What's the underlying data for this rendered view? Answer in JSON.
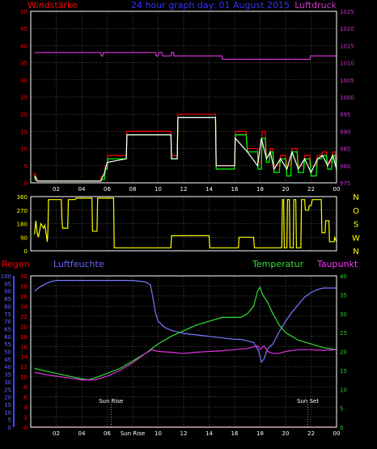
{
  "header": {
    "left_label": "Windstärke",
    "center_title": "24 hour graph day: 01 August 2015",
    "right_label": "Luftdruck"
  },
  "bottom_header": {
    "regen": "Regen",
    "luftfeuchte": "Luftfeuchte",
    "temperatur": "Temperatur",
    "taupunkt": "Taupunkt"
  },
  "colors": {
    "background": "#000000",
    "grid": "#8a8a8a",
    "axis_text": "#ffffff",
    "wind": "#ff0000",
    "gust": "#00ff00",
    "windspeed_avg": "#ffffff",
    "pressure": "#cc33cc",
    "direction": "#ffff00",
    "rain": "#ff0000",
    "humidity": "#7777ff",
    "temperature": "#33dd33",
    "dewpoint": "#dd33dd",
    "rain_axis": "#4444ff",
    "temp_axis": "#33cc33"
  },
  "chart_data": [
    {
      "type": "line",
      "panel": "wind-pressure",
      "x_ticks": [
        "02",
        "04",
        "06",
        "08",
        "10",
        "12",
        "14",
        "16",
        "18",
        "20",
        "22",
        "00"
      ],
      "y_left_ticks": [
        "0",
        "5",
        "10",
        "15",
        "20",
        "25",
        "30",
        "35",
        "40",
        "45",
        "50"
      ],
      "y_left_range": [
        0,
        50
      ],
      "y_right_ticks": [
        "975",
        "980",
        "985",
        "990",
        "995",
        "1000",
        "1005",
        "1010",
        "1015",
        "1020",
        "1025"
      ],
      "y_right_range": [
        975,
        1025
      ],
      "grid": true,
      "series": [
        {
          "key": "wind",
          "x": [
            0.3,
            0.35,
            0.4,
            0.5,
            0.6,
            0.7,
            5.5,
            5.55,
            5.8,
            5.85,
            6.0,
            6.05,
            7.5,
            7.55,
            10.5,
            10.55,
            11.0,
            11.05,
            11.5,
            11.55,
            14.5,
            14.55,
            16.0,
            16.05,
            16.9,
            17.0,
            17.8,
            17.85,
            18.1,
            18.15,
            18.4,
            18.5,
            18.7,
            18.8,
            19.0,
            19.1,
            19.5,
            19.6,
            20.0,
            20.1,
            20.4,
            20.5,
            20.9,
            21.0,
            21.4,
            21.5,
            21.9,
            22.0,
            22.4,
            22.5,
            22.8,
            22.9,
            23.2,
            23.3,
            23.6,
            23.7,
            23.9,
            24.0
          ],
          "y": [
            3,
            1,
            2,
            1,
            0.5,
            0.5,
            0.5,
            2,
            2,
            5,
            5,
            8,
            8,
            15,
            15,
            15,
            15,
            8,
            8,
            20,
            20,
            5,
            5,
            15,
            15,
            10,
            10,
            6,
            6,
            15,
            15,
            8,
            8,
            10,
            10,
            5,
            5,
            8,
            8,
            5,
            5,
            10,
            10,
            5,
            5,
            8,
            8,
            5,
            5,
            8,
            8,
            9,
            9,
            6,
            6,
            9,
            9,
            5
          ]
        },
        {
          "key": "gust",
          "x": [
            0.3,
            0.35,
            0.4,
            0.5,
            0.6,
            0.7,
            5.5,
            5.55,
            5.8,
            5.85,
            6.0,
            6.05,
            7.5,
            7.55,
            10.5,
            10.55,
            11.0,
            11.05,
            11.5,
            11.55,
            14.5,
            14.55,
            16.0,
            16.05,
            16.9,
            17.0,
            17.8,
            17.85,
            18.1,
            18.15,
            18.4,
            18.5,
            18.7,
            18.8,
            19.0,
            19.1,
            19.5,
            19.6,
            20.0,
            20.1,
            20.4,
            20.5,
            20.9,
            21.0,
            21.4,
            21.5,
            21.9,
            22.0,
            22.4,
            22.5,
            22.8,
            22.9,
            23.2,
            23.3,
            23.6,
            23.7,
            23.9,
            24.0
          ],
          "y": [
            2,
            1,
            1.5,
            0.5,
            0.5,
            0.5,
            0.5,
            1,
            1,
            4,
            4,
            7,
            7,
            14,
            14,
            14,
            14,
            7,
            7,
            19,
            19,
            4,
            4,
            14,
            14,
            9,
            9,
            4,
            4,
            13,
            13,
            6,
            6,
            9,
            9,
            3,
            3,
            7,
            7,
            2,
            2,
            9,
            9,
            3,
            3,
            7,
            7,
            2,
            2,
            7,
            7,
            8,
            8,
            4,
            4,
            8,
            8,
            3
          ]
        },
        {
          "key": "windspeed_avg",
          "x": [
            0.3,
            0.5,
            5.5,
            5.8,
            6.0,
            7.5,
            7.55,
            10.5,
            11.0,
            11.05,
            11.5,
            11.55,
            14.5,
            14.55,
            16.0,
            16.05,
            17.0,
            17.8,
            18.1,
            18.5,
            18.8,
            19.1,
            19.6,
            20.1,
            20.5,
            21.0,
            21.5,
            22.0,
            22.5,
            22.9,
            23.3,
            23.7,
            24.0
          ],
          "y": [
            2,
            0.5,
            0.5,
            3,
            6,
            7,
            14,
            14,
            14,
            7,
            7,
            19,
            19,
            5,
            5,
            13,
            9,
            5,
            13,
            7,
            9,
            4,
            7,
            4,
            9,
            4,
            7,
            3,
            7,
            8,
            5,
            8,
            4
          ]
        },
        {
          "key": "pressure",
          "x": [
            0.3,
            5.5,
            5.55,
            5.65,
            5.7,
            9.8,
            9.85,
            10.0,
            10.05,
            10.3,
            10.35,
            11.0,
            11.05,
            11.2,
            11.25,
            15.0,
            15.05,
            21.9,
            21.95,
            24.0
          ],
          "y": [
            1013,
            1013,
            1012,
            1012,
            1013,
            1013,
            1012,
            1012,
            1013,
            1013,
            1012,
            1012,
            1013,
            1013,
            1012,
            1012,
            1011,
            1011,
            1012,
            1012
          ]
        }
      ]
    },
    {
      "type": "line",
      "panel": "wind-direction",
      "y_left_ticks": [
        "0",
        "90",
        "180",
        "270",
        "360"
      ],
      "y_left_range": [
        0,
        360
      ],
      "compass_labels": [
        "N",
        "W",
        "S",
        "O",
        "N"
      ],
      "grid": true,
      "series": [
        {
          "key": "direction",
          "x": [
            0.3,
            0.4,
            0.5,
            0.6,
            0.8,
            1.0,
            1.1,
            1.2,
            1.3,
            1.35,
            1.4,
            2.4,
            2.45,
            2.5,
            2.9,
            2.95,
            3.5,
            3.55,
            3.6,
            4.8,
            4.85,
            5.2,
            5.25,
            6.5,
            6.55,
            11.0,
            11.05,
            14.0,
            14.05,
            15.3,
            15.35,
            16.3,
            16.35,
            17.5,
            17.55,
            18.5,
            18.55,
            19.7,
            19.75,
            19.85,
            19.9,
            20.1,
            20.15,
            20.3,
            20.35,
            20.6,
            20.65,
            20.8,
            20.85,
            21.2,
            21.25,
            21.5,
            21.55,
            21.8,
            21.85,
            22.0,
            22.1,
            22.8,
            22.85,
            23.1,
            23.15,
            23.4,
            23.45,
            23.8,
            23.85,
            24.0
          ],
          "y": [
            110,
            200,
            120,
            90,
            180,
            150,
            170,
            120,
            60,
            150,
            340,
            340,
            200,
            150,
            150,
            340,
            340,
            350,
            350,
            350,
            130,
            130,
            350,
            350,
            20,
            20,
            100,
            100,
            20,
            20,
            20,
            20,
            90,
            90,
            20,
            20,
            20,
            20,
            340,
            340,
            20,
            20,
            340,
            340,
            20,
            20,
            340,
            340,
            20,
            20,
            340,
            340,
            270,
            270,
            300,
            300,
            340,
            340,
            120,
            120,
            200,
            200,
            60,
            60,
            90,
            60
          ]
        }
      ]
    },
    {
      "type": "line",
      "panel": "climate",
      "x_ticks": [
        "02",
        "04",
        "06",
        "Sun Rise",
        "10",
        "12",
        "14",
        "16",
        "18",
        "20",
        "22",
        "00"
      ],
      "y_left_outer_ticks": [
        "0",
        "5",
        "10",
        "15",
        "20",
        "25",
        "30",
        "35",
        "40",
        "45",
        "50",
        "55",
        "60",
        "65",
        "70",
        "75",
        "80",
        "85",
        "90",
        "95",
        "100"
      ],
      "y_left_outer_range": [
        0,
        100
      ],
      "y_left_inner_ticks": [
        "0",
        "2",
        "4",
        "6",
        "8",
        "10",
        "12",
        "14",
        "16",
        "18",
        "20",
        "22",
        "24",
        "26",
        "28",
        "30"
      ],
      "y_left_inner_range": [
        0,
        30
      ],
      "y_right_ticks": [
        "0",
        "5",
        "10",
        "15",
        "20",
        "25",
        "30",
        "35",
        "40"
      ],
      "y_right_range": [
        0,
        40
      ],
      "annotations": [
        {
          "text": "Sun Rise",
          "x": 6.3
        },
        {
          "text": "Sun Set",
          "x": 21.75
        }
      ],
      "grid": true,
      "series": [
        {
          "key": "rain",
          "x": [
            0,
            24
          ],
          "y": [
            0,
            0
          ]
        },
        {
          "key": "humidity",
          "x": [
            0.3,
            0.6,
            1.0,
            1.5,
            2.0,
            3.0,
            4.0,
            5.0,
            6.0,
            7.0,
            8.0,
            9.0,
            9.4,
            9.6,
            9.8,
            10.0,
            10.5,
            11.0,
            11.5,
            12.0,
            13.0,
            14.0,
            15.0,
            16.0,
            16.5,
            17.0,
            17.5,
            17.9,
            18.1,
            18.3,
            18.6,
            19.0,
            19.5,
            20.0,
            20.5,
            21.0,
            21.5,
            22.0,
            22.5,
            23.0,
            23.5,
            24.0
          ],
          "y": [
            90,
            92,
            94,
            96,
            97,
            97,
            97,
            97,
            97,
            97,
            97,
            96,
            94,
            85,
            75,
            70,
            66,
            64,
            63,
            62,
            61,
            60,
            59,
            58,
            58,
            57,
            56,
            50,
            43,
            45,
            52,
            55,
            63,
            70,
            76,
            81,
            86,
            89,
            91,
            92,
            92,
            92
          ]
        },
        {
          "key": "temperature",
          "x": [
            0.3,
            1.0,
            2.0,
            3.0,
            4.0,
            4.5,
            5.0,
            6.0,
            7.0,
            8.0,
            9.0,
            10.0,
            11.0,
            12.0,
            13.0,
            14.0,
            15.0,
            16.0,
            16.5,
            17.0,
            17.5,
            17.8,
            18.0,
            18.2,
            18.4,
            18.6,
            19.0,
            19.5,
            20.0,
            21.0,
            22.0,
            23.0,
            24.0
          ],
          "y": [
            15.5,
            15,
            14.2,
            13.5,
            12.8,
            12.5,
            13,
            14.2,
            15.5,
            17.5,
            19.5,
            22,
            24,
            25.5,
            27,
            28,
            29,
            29,
            29,
            30,
            32,
            36,
            37,
            35,
            34,
            33,
            30,
            27,
            25,
            23,
            22,
            21,
            20.5
          ]
        },
        {
          "key": "dewpoint",
          "x": [
            0.3,
            1.0,
            2.0,
            3.0,
            4.0,
            5.0,
            6.0,
            7.0,
            8.0,
            9.0,
            9.5,
            10.0,
            11.0,
            12.0,
            13.0,
            14.0,
            15.0,
            16.0,
            17.0,
            17.8,
            18.0,
            18.3,
            18.6,
            19.0,
            19.5,
            20.0,
            21.0,
            22.0,
            23.0,
            24.0
          ],
          "y": [
            14.5,
            14,
            13.5,
            13,
            12.5,
            12.5,
            13.5,
            15,
            17,
            19.5,
            20.5,
            20,
            19.8,
            19.5,
            19.8,
            20,
            20.2,
            20.5,
            20.8,
            21.5,
            20.5,
            21.5,
            20,
            19.5,
            19.5,
            20,
            20.5,
            20.5,
            20.3,
            20.5
          ]
        }
      ]
    }
  ]
}
